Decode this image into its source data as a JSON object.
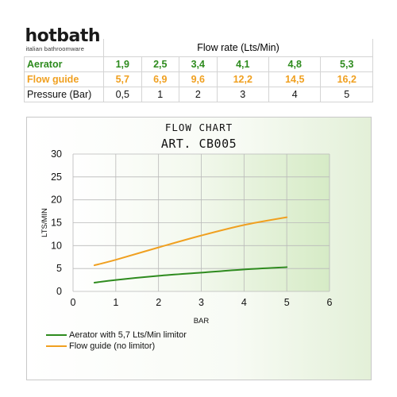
{
  "brand": {
    "name": "hotbath",
    "tagline": "italian bathroomware"
  },
  "table": {
    "header": "Flow rate (Lts/Min)",
    "rows": [
      {
        "label": "Aerator",
        "values": [
          "1,9",
          "2,5",
          "3,4",
          "4,1",
          "4,8",
          "5,3"
        ],
        "color": "#2e8b1e"
      },
      {
        "label": "Flow guide",
        "values": [
          "5,7",
          "6,9",
          "9,6",
          "12,2",
          "14,5",
          "16,2"
        ],
        "color": "#f0a020"
      },
      {
        "label": "Pressure (Bar)",
        "values": [
          "0,5",
          "1",
          "2",
          "3",
          "4",
          "5"
        ],
        "color": "#111111"
      }
    ]
  },
  "chart": {
    "title_line1": "FLOW CHART",
    "title_line2": "ART. CB005"
  },
  "chart_data": {
    "type": "line",
    "title": "FLOW CHART ART. CB005",
    "xlabel": "BAR",
    "ylabel": "LTS/MIN",
    "xlim": [
      0,
      6
    ],
    "ylim": [
      0,
      30
    ],
    "xticks": [
      "0",
      "1",
      "2",
      "3",
      "4",
      "5",
      "6"
    ],
    "yticks": [
      "0",
      "5",
      "10",
      "15",
      "20",
      "25",
      "30"
    ],
    "grid": true,
    "legend_position": "bottom-left",
    "background": "gradient white to light green",
    "series": [
      {
        "name": "Aerator with 5,7 Lts/Min limitor",
        "color": "#2e8b1e",
        "x": [
          0.5,
          1,
          2,
          3,
          4,
          5
        ],
        "y": [
          1.9,
          2.5,
          3.4,
          4.1,
          4.8,
          5.3
        ]
      },
      {
        "name": "Flow guide (no limitor)",
        "color": "#f0a020",
        "x": [
          0.5,
          1,
          2,
          3,
          4,
          5
        ],
        "y": [
          5.7,
          6.9,
          9.6,
          12.2,
          14.5,
          16.2
        ]
      }
    ]
  }
}
